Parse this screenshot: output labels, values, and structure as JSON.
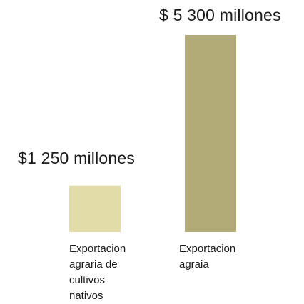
{
  "chart_data": {
    "type": "bar",
    "categories": [
      "Exportacion\nagraria  de\ncultivos\nnativos",
      "Exportacion\nagraia"
    ],
    "values": [
      1250,
      5300
    ],
    "data_labels": [
      "$1 250 millones",
      "$ 5 300 millones"
    ],
    "colors": [
      "#e2dca8",
      "#b2ab77"
    ],
    "title": "",
    "xlabel": "",
    "ylabel": "",
    "ylim": [
      0,
      5300
    ],
    "grid": false,
    "legend": "none"
  }
}
